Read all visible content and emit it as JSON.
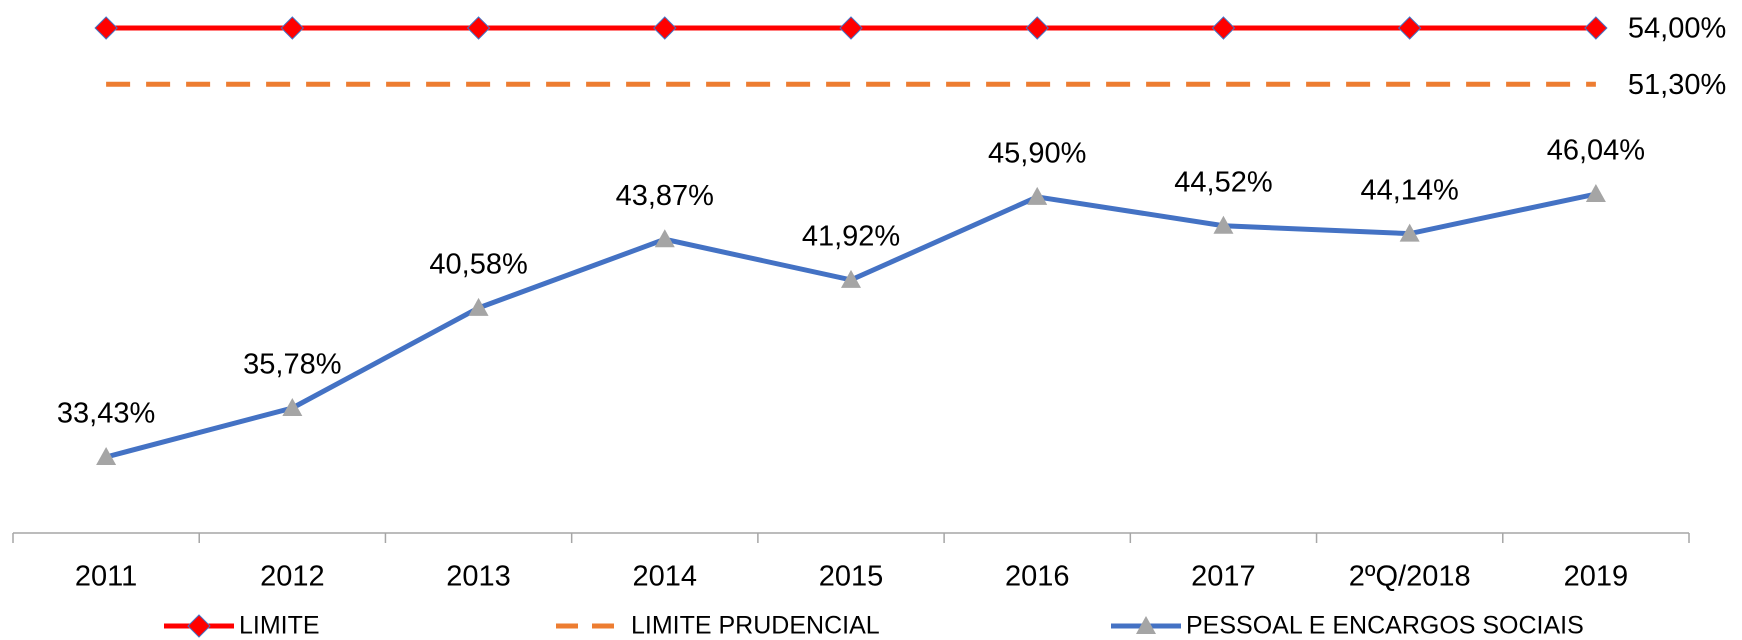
{
  "chart_data": {
    "type": "line",
    "categories": [
      "2011",
      "2012",
      "2013",
      "2014",
      "2015",
      "2016",
      "2017",
      "2ºQ/2018",
      "2019"
    ],
    "series": [
      {
        "name": "LIMITE",
        "color": "#ff0000",
        "marker": "diamond",
        "dash": false,
        "values": [
          54,
          54,
          54,
          54,
          54,
          54,
          54,
          54,
          54
        ],
        "value_labels": [
          null,
          null,
          null,
          null,
          null,
          null,
          null,
          null,
          "54,00%"
        ]
      },
      {
        "name": "LIMITE PRUDENCIAL",
        "color": "#ed7d31",
        "marker": "none",
        "dash": true,
        "values": [
          51.3,
          51.3,
          51.3,
          51.3,
          51.3,
          51.3,
          51.3,
          51.3,
          51.3
        ],
        "value_labels": [
          null,
          null,
          null,
          null,
          null,
          null,
          null,
          null,
          "51,30%"
        ]
      },
      {
        "name": "PESSOAL E ENCARGOS SOCIAIS",
        "color": "#4472c4",
        "marker": "triangle",
        "dash": false,
        "values": [
          33.43,
          35.78,
          40.58,
          43.87,
          41.92,
          45.9,
          44.52,
          44.14,
          46.04
        ],
        "value_labels": [
          "33,43%",
          "35,78%",
          "40,58%",
          "43,87%",
          "41,92%",
          "45,90%",
          "44,52%",
          "44,14%",
          "46,04%"
        ]
      }
    ]
  }
}
